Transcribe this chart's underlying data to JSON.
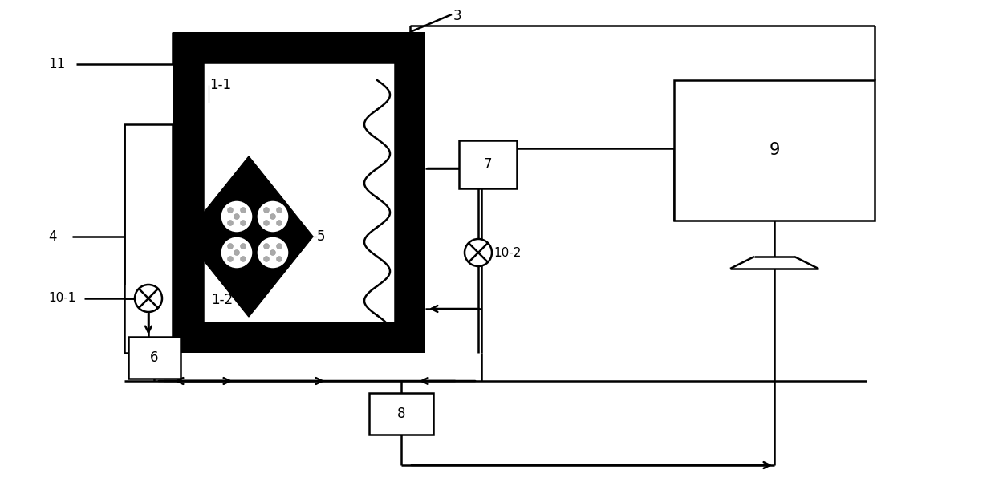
{
  "bg_color": "#ffffff",
  "line_color": "#000000",
  "label_fontsize": 12,
  "figsize": [
    12.4,
    6.26
  ],
  "dpi": 100
}
